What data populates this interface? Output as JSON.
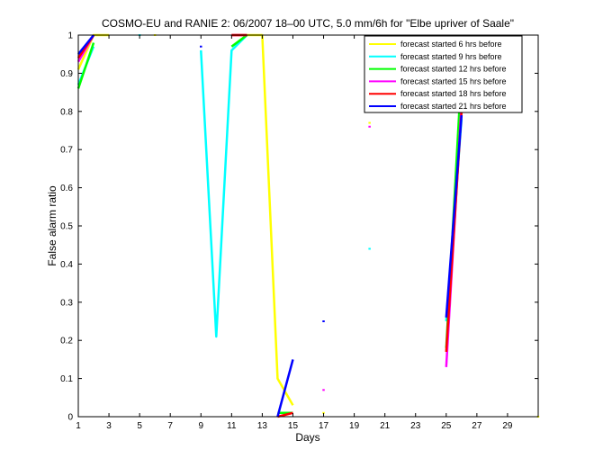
{
  "chart_data": {
    "type": "line",
    "title": "COSMO-EU and RANIE 2: 06/2007 18–00 UTC, 5.0 mm/6h for \"Elbe upriver of Saale\"",
    "xlabel": "Days",
    "ylabel": "False alarm ratio",
    "xlim": [
      1,
      31
    ],
    "ylim": [
      0,
      1
    ],
    "xticks": [
      1,
      3,
      5,
      7,
      9,
      11,
      13,
      15,
      17,
      19,
      21,
      23,
      25,
      27,
      29
    ],
    "yticks": [
      0,
      0.1,
      0.2,
      0.3,
      0.4,
      0.5,
      0.6,
      0.7,
      0.8,
      0.9,
      1
    ],
    "ytick_labels": [
      "0",
      "0.1",
      "0.2",
      "0.3",
      "0.4",
      "0.5",
      "0.6",
      "0.7",
      "0.8",
      "0.9",
      "1"
    ],
    "grid": false,
    "legend_position": "top-right",
    "series": [
      {
        "name": "forecast started 6 hrs before",
        "color": "#ffff00",
        "points": [
          [
            1,
            0.91
          ],
          [
            2,
            1
          ],
          [
            3,
            1
          ],
          [
            6,
            1
          ],
          [
            11,
            1
          ],
          [
            12,
            1
          ],
          [
            13,
            1
          ],
          [
            14,
            0.1
          ],
          [
            15,
            0.03
          ],
          [
            17,
            0.01
          ],
          [
            20,
            0.77
          ],
          [
            31,
            0
          ]
        ]
      },
      {
        "name": "forecast started 9 hrs before",
        "color": "#00ffff",
        "points": [
          [
            1,
            0.87
          ],
          [
            2,
            0.97
          ],
          [
            5,
            1
          ],
          [
            9,
            0.96
          ],
          [
            10,
            0.21
          ],
          [
            11,
            0.96
          ],
          [
            12,
            1
          ],
          [
            20,
            0.44
          ],
          [
            25,
            0.25
          ],
          [
            26,
            0.78
          ]
        ]
      },
      {
        "name": "forecast started 12 hrs before",
        "color": "#00ff00",
        "points": [
          [
            1,
            0.86
          ],
          [
            2,
            0.98
          ],
          [
            11,
            0.97
          ],
          [
            12,
            1
          ],
          [
            14,
            0.01
          ],
          [
            15,
            0.01
          ],
          [
            25,
            0.18
          ],
          [
            26,
            0.91
          ]
        ]
      },
      {
        "name": "forecast started 15 hrs before",
        "color": "#ff00ff",
        "points": [
          [
            1,
            0.93
          ],
          [
            2,
            1
          ],
          [
            11,
            1
          ],
          [
            12,
            1
          ],
          [
            17,
            0.07
          ],
          [
            20,
            0.76
          ],
          [
            25,
            0.13
          ],
          [
            26,
            0.82
          ]
        ]
      },
      {
        "name": "forecast started 18 hrs before",
        "color": "#ff0000",
        "points": [
          [
            1,
            0.94
          ],
          [
            2,
            1
          ],
          [
            11,
            1
          ],
          [
            12,
            1
          ],
          [
            14,
            0
          ],
          [
            15,
            0.01
          ],
          [
            20,
            0.8
          ],
          [
            25,
            0.17
          ],
          [
            26,
            0.8
          ]
        ]
      },
      {
        "name": "forecast started 21 hrs before",
        "color": "#0000ff",
        "points": [
          [
            1,
            0.95
          ],
          [
            2,
            1
          ],
          [
            9,
            0.97
          ],
          [
            14,
            0
          ],
          [
            15,
            0.15
          ],
          [
            17,
            0.25
          ],
          [
            25,
            0.26
          ],
          [
            26,
            0.79
          ]
        ]
      }
    ]
  }
}
